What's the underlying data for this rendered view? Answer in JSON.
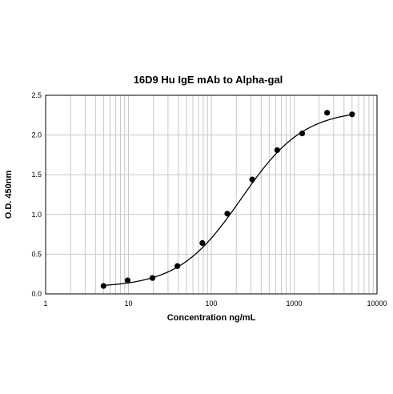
{
  "chart_data": {
    "type": "scatter",
    "title": "16D9 Hu IgE mAb to Alpha-gal",
    "xlabel": "Concentration ng/mL",
    "ylabel": "O.D. 450nm",
    "x_scale": "log",
    "xlim": [
      1,
      10000
    ],
    "ylim": [
      0,
      2.5
    ],
    "grid": true,
    "x_ticks": [
      "1",
      "10",
      "100",
      "1000",
      "10000"
    ],
    "y_ticks": [
      "0.0",
      "0.5",
      "1.0",
      "1.5",
      "2.0",
      "2.5"
    ],
    "marker_color": "#000000",
    "series": [
      {
        "points": [
          {
            "x": 5,
            "y": 0.1
          },
          {
            "x": 9.77,
            "y": 0.17
          },
          {
            "x": 19.5,
            "y": 0.2
          },
          {
            "x": 39,
            "y": 0.35
          },
          {
            "x": 78,
            "y": 0.64
          },
          {
            "x": 156,
            "y": 1.01
          },
          {
            "x": 312,
            "y": 1.44
          },
          {
            "x": 625,
            "y": 1.81
          },
          {
            "x": 1250,
            "y": 2.02
          },
          {
            "x": 2500,
            "y": 2.28
          },
          {
            "x": 5000,
            "y": 2.26
          }
        ]
      }
    ],
    "fit_curve": {
      "model": "4PL",
      "bottom": 0.08,
      "top": 2.32,
      "ec50": 230,
      "hill": 1.15
    }
  }
}
